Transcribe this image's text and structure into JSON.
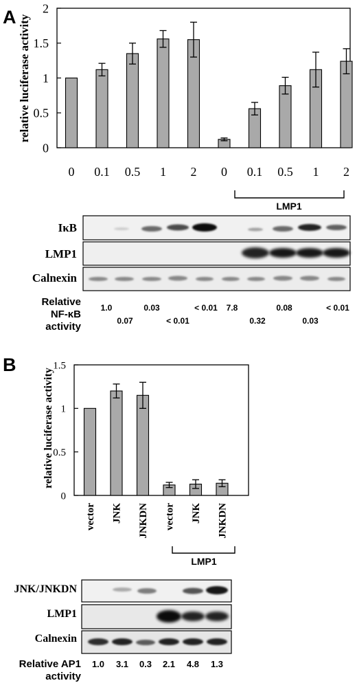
{
  "panels": {
    "a": {
      "letter": "A",
      "bracket_label": "LMP1",
      "blot_rows": [
        "IκB",
        "LMP1",
        "Calnexin"
      ],
      "relative_label": [
        "Relative",
        "NF-κB",
        "activity"
      ],
      "relative_top": [
        "1.0",
        "0.03",
        "< 0.01",
        "7.8",
        "0.08",
        "< 0.01"
      ],
      "relative_bottom": [
        "0.07",
        "< 0.01",
        "0.32",
        "0.03"
      ]
    },
    "b": {
      "letter": "B",
      "bracket_label": "LMP1",
      "blot_rows": [
        "JNK/JNKDN",
        "LMP1",
        "Calnexin"
      ],
      "relative_label": [
        "Relative AP1",
        "activity"
      ],
      "relative_values": [
        "1.0",
        "3.1",
        "0.3",
        "2.1",
        "4.8",
        "1.3"
      ]
    }
  },
  "chart_data": [
    {
      "type": "bar",
      "panel": "A",
      "ylabel": "relative luciferase activity",
      "ylim": [
        0,
        2
      ],
      "yticks": [
        "0",
        "0.5",
        "1",
        "1.5",
        "2"
      ],
      "categories": [
        "0",
        "0.1",
        "0.5",
        "1",
        "2",
        "0",
        "0.1",
        "0.5",
        "1",
        "2"
      ],
      "values": [
        1.0,
        1.12,
        1.35,
        1.56,
        1.55,
        0.12,
        0.56,
        0.89,
        1.12,
        1.24
      ],
      "errors": [
        0.0,
        0.09,
        0.15,
        0.12,
        0.25,
        0.02,
        0.09,
        0.12,
        0.25,
        0.18
      ],
      "grid": false,
      "legend": "none"
    },
    {
      "type": "bar",
      "panel": "B",
      "ylabel": "relative luciferase activity",
      "ylim": [
        0,
        1.5
      ],
      "yticks": [
        "0",
        "0.5",
        "1",
        "1.5"
      ],
      "categories": [
        "vector",
        "JNK",
        "JNKDN",
        "vector",
        "JNK",
        "JNKDN"
      ],
      "values": [
        1.0,
        1.2,
        1.15,
        0.12,
        0.13,
        0.14
      ],
      "errors": [
        0.0,
        0.08,
        0.15,
        0.03,
        0.05,
        0.04
      ],
      "grid": false,
      "legend": "none"
    }
  ]
}
